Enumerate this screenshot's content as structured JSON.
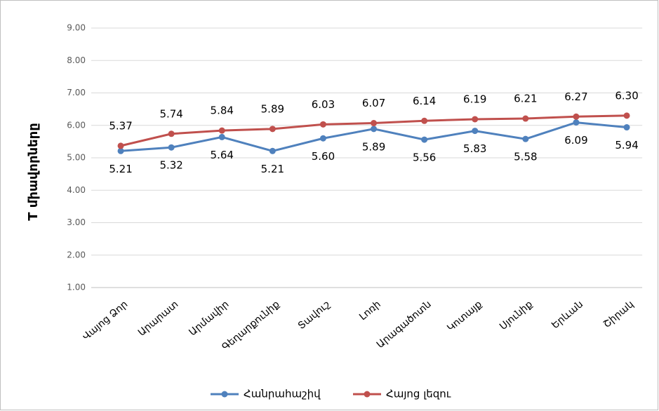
{
  "chart_data": {
    "type": "line",
    "y_label": "T միավորները",
    "categories": [
      "Վայոց Ձոր",
      "Արարատ",
      "Արմավիր",
      "Գեղարքունիք",
      "Տավուշ",
      "Լոռի",
      "Արագածոտն",
      "Կոտայք",
      "Սյունիք",
      "Երևան",
      "Շիրակ"
    ],
    "series": [
      {
        "name": "Հանրահաշիվ",
        "color": "#4f81bd",
        "values": [
          5.21,
          5.32,
          5.64,
          5.21,
          5.6,
          5.89,
          5.56,
          5.83,
          5.58,
          6.09,
          5.94
        ],
        "value_labels": [
          "5.21",
          "5.32",
          "5.64",
          "5.21",
          "5.60",
          "5.89",
          "5.56",
          "5.83",
          "5.58",
          "6.09",
          "5.94"
        ]
      },
      {
        "name": "Հայոց լեզու",
        "color": "#c0504d",
        "values": [
          5.37,
          5.74,
          5.84,
          5.89,
          6.03,
          6.07,
          6.14,
          6.19,
          6.21,
          6.27,
          6.3
        ],
        "value_labels": [
          "5.37",
          "5.74",
          "5.84",
          "5.89",
          "6.03",
          "6.07",
          "6.14",
          "6.19",
          "6.21",
          "6.27",
          "6.30"
        ]
      }
    ],
    "ylim": [
      1,
      9
    ],
    "yticks": [
      {
        "value": 1,
        "label": "1.00"
      },
      {
        "value": 2,
        "label": "2.00"
      },
      {
        "value": 3,
        "label": "3.00"
      },
      {
        "value": 4,
        "label": "4.00"
      },
      {
        "value": 5,
        "label": "5.00"
      },
      {
        "value": 6,
        "label": "6.00"
      },
      {
        "value": 7,
        "label": "7.00"
      },
      {
        "value": 8,
        "label": "8.00"
      },
      {
        "value": 9,
        "label": "9.00"
      }
    ],
    "grid": true,
    "legend": "bottom"
  }
}
